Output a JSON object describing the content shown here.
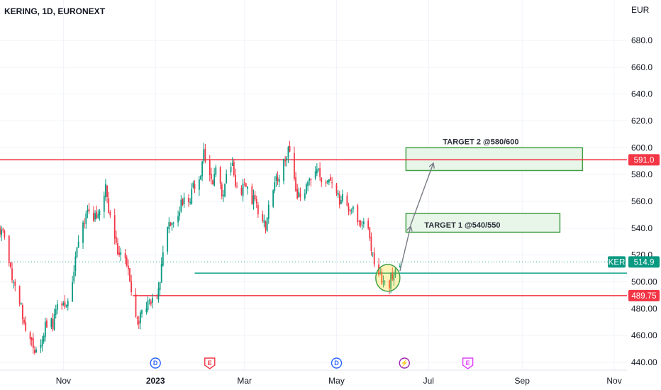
{
  "chart_data": {
    "type": "candlestick",
    "title": "KERING, 1D, EURONEXT",
    "currency": "EUR",
    "y_axis_position": "right",
    "ylim": [
      435,
      705
    ],
    "yticks": [
      "440.00",
      "460.00",
      "480.00",
      "500.00",
      "520.0",
      "540.0",
      "560.0",
      "580.0",
      "600.0",
      "620.0",
      "640.0",
      "660.0",
      "680.0"
    ],
    "x_range": [
      "2022-09-20",
      "2023-12-02"
    ],
    "x_ticks": [
      {
        "date": "2022-11-01",
        "label": "Nov"
      },
      {
        "date": "2023-01-01",
        "label": "2023"
      },
      {
        "date": "2023-03-01",
        "label": "Mar"
      },
      {
        "date": "2023-05-01",
        "label": "May"
      },
      {
        "date": "2023-07-01",
        "label": "Jul"
      },
      {
        "date": "2023-09-01",
        "label": "Sep"
      },
      {
        "date": "2023-11-01",
        "label": "Nov"
      }
    ],
    "grid": true,
    "colors": {
      "up": "#089981",
      "down": "#f23645",
      "resistance": "#f23645",
      "support": "#f23645",
      "trend_line": "#22ab94",
      "zone_border": "#43a047",
      "zone_fill": "#e8f5e9",
      "arrow": "#787b86"
    },
    "series": [
      {
        "name": "KER",
        "last_price": "514.9",
        "last_price_value": 514.9
      }
    ],
    "price_path": [
      [
        "2022-09-20",
        540
      ],
      [
        "2022-09-24",
        530
      ],
      [
        "2022-09-28",
        505
      ],
      [
        "2022-10-02",
        490
      ],
      [
        "2022-10-06",
        470
      ],
      [
        "2022-10-10",
        460
      ],
      [
        "2022-10-13",
        443
      ],
      [
        "2022-10-17",
        455
      ],
      [
        "2022-10-21",
        470
      ],
      [
        "2022-10-25",
        468
      ],
      [
        "2022-10-29",
        485
      ],
      [
        "2022-11-02",
        480
      ],
      [
        "2022-11-06",
        490
      ],
      [
        "2022-11-09",
        520
      ],
      [
        "2022-11-13",
        545
      ],
      [
        "2022-11-17",
        550
      ],
      [
        "2022-11-21",
        545
      ],
      [
        "2022-11-25",
        555
      ],
      [
        "2022-11-29",
        570
      ],
      [
        "2022-12-02",
        548
      ],
      [
        "2022-12-06",
        525
      ],
      [
        "2022-12-10",
        518
      ],
      [
        "2022-12-14",
        510
      ],
      [
        "2022-12-17",
        490
      ],
      [
        "2022-12-20",
        470
      ],
      [
        "2022-12-24",
        478
      ],
      [
        "2022-12-28",
        485
      ],
      [
        "2023-01-01",
        485
      ],
      [
        "2023-01-04",
        500
      ],
      [
        "2023-01-07",
        530
      ],
      [
        "2023-01-11",
        545
      ],
      [
        "2023-01-15",
        550
      ],
      [
        "2023-01-19",
        560
      ],
      [
        "2023-01-23",
        555
      ],
      [
        "2023-01-26",
        570
      ],
      [
        "2023-01-30",
        575
      ],
      [
        "2023-02-02",
        596
      ],
      [
        "2023-02-05",
        582
      ],
      [
        "2023-02-08",
        575
      ],
      [
        "2023-02-11",
        590
      ],
      [
        "2023-02-14",
        560
      ],
      [
        "2023-02-17",
        580
      ],
      [
        "2023-02-20",
        590
      ],
      [
        "2023-02-23",
        575
      ],
      [
        "2023-02-26",
        560
      ],
      [
        "2023-03-01",
        575
      ],
      [
        "2023-03-05",
        565
      ],
      [
        "2023-03-09",
        555
      ],
      [
        "2023-03-12",
        550
      ],
      [
        "2023-03-15",
        540
      ],
      [
        "2023-03-18",
        560
      ],
      [
        "2023-03-22",
        575
      ],
      [
        "2023-03-26",
        585
      ],
      [
        "2023-03-30",
        600
      ],
      [
        "2023-04-02",
        585
      ],
      [
        "2023-04-05",
        565
      ],
      [
        "2023-04-09",
        560
      ],
      [
        "2023-04-12",
        575
      ],
      [
        "2023-04-15",
        578
      ],
      [
        "2023-04-18",
        585
      ],
      [
        "2023-04-21",
        570
      ],
      [
        "2023-04-25",
        575
      ],
      [
        "2023-04-29",
        570
      ],
      [
        "2023-05-03",
        562
      ],
      [
        "2023-05-07",
        560
      ],
      [
        "2023-05-10",
        555
      ],
      [
        "2023-05-14",
        550
      ],
      [
        "2023-05-18",
        545
      ],
      [
        "2023-05-21",
        540
      ],
      [
        "2023-05-23",
        535
      ],
      [
        "2023-05-25",
        518
      ],
      [
        "2023-05-27",
        515
      ],
      [
        "2023-05-30",
        505
      ],
      [
        "2023-06-02",
        498
      ],
      [
        "2023-06-05",
        500
      ],
      [
        "2023-06-07",
        505
      ],
      [
        "2023-06-09",
        508
      ],
      [
        "2023-06-12",
        514.9
      ]
    ],
    "annotations": {
      "horizontal_lines": [
        {
          "price": 591.0,
          "label": "591.0",
          "from": "2022-09-20",
          "to": "2023-12-02",
          "color": "#f23645"
        },
        {
          "price": 489.75,
          "label": "489.75",
          "from": "2022-12-17",
          "to": "2023-12-02",
          "color": "#f23645"
        },
        {
          "price": 506.5,
          "from": "2023-01-27",
          "to": "2023-11-23",
          "color": "#22ab94"
        }
      ],
      "target_zones": [
        {
          "label": "TARGET 1 @540/550",
          "from": "2023-06-16",
          "to": "2023-09-26",
          "price_top": 551,
          "price_bottom": 537
        },
        {
          "label": "TARGET 2 @580/600",
          "from": "2023-06-16",
          "to": "2023-10-11",
          "price_top": 600,
          "price_bottom": 583
        }
      ],
      "arrows": [
        {
          "from": [
            "2023-06-12",
            508
          ],
          "to": [
            "2023-06-19",
            541
          ]
        },
        {
          "from": [
            "2023-06-19",
            542
          ],
          "to": [
            "2023-07-04",
            588
          ]
        }
      ],
      "highlight_circle": {
        "date": "2023-06-04",
        "price": 503
      },
      "events": [
        {
          "date": "2023-01-01",
          "letter": "D",
          "kind": "dividend"
        },
        {
          "date": "2023-02-06",
          "letter": "E",
          "kind": "earnings"
        },
        {
          "date": "2023-05-01",
          "letter": "D",
          "kind": "dividend"
        },
        {
          "date": "2023-06-15",
          "letter": "⚡",
          "kind": "news"
        },
        {
          "date": "2023-07-27",
          "letter": "E",
          "kind": "earnings"
        }
      ]
    }
  }
}
